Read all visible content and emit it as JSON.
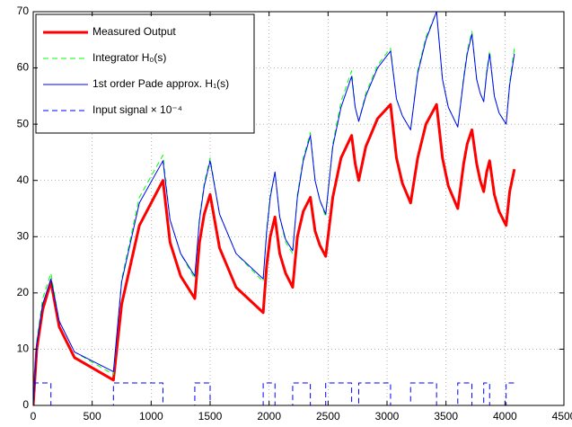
{
  "chart_data": {
    "type": "line",
    "xlim": [
      0,
      4500
    ],
    "xticks": [
      0,
      500,
      1000,
      1500,
      2000,
      2500,
      3000,
      3500,
      4000,
      4500
    ],
    "ylim": [
      0,
      70
    ],
    "yticks": [
      0,
      10,
      20,
      30,
      40,
      50,
      60,
      70
    ],
    "grid": true,
    "legend": "upper left",
    "x": [
      0,
      30,
      80,
      150,
      220,
      350,
      680,
      750,
      900,
      1100,
      1160,
      1250,
      1370,
      1410,
      1450,
      1500,
      1580,
      1720,
      1950,
      1980,
      2010,
      2050,
      2090,
      2140,
      2200,
      2240,
      2290,
      2350,
      2390,
      2430,
      2480,
      2540,
      2610,
      2700,
      2730,
      2760,
      2820,
      2920,
      3030,
      3080,
      3130,
      3200,
      3260,
      3330,
      3420,
      3470,
      3520,
      3600,
      3650,
      3680,
      3720,
      3760,
      3790,
      3820,
      3845,
      3870,
      3910,
      3950,
      4010,
      4040,
      4080
    ],
    "series": [
      {
        "name": "Measured Output",
        "color": "#ff0000",
        "style": "solid",
        "width": 3,
        "values": [
          0,
          10,
          17,
          22,
          14,
          8.5,
          4.5,
          18,
          32,
          40,
          29,
          23,
          19,
          29,
          34,
          37.5,
          28,
          21,
          16.5,
          25,
          30,
          33.5,
          27,
          23.5,
          21,
          30,
          34.5,
          37,
          31,
          28.5,
          26.5,
          37,
          44,
          48,
          43,
          40,
          46,
          51,
          53.5,
          44,
          39.5,
          36,
          44,
          50,
          53.5,
          44,
          39,
          35,
          43,
          46.5,
          49,
          43,
          40,
          38,
          41.5,
          43.5,
          37.5,
          34.5,
          32,
          38,
          42
        ]
      },
      {
        "name": "Integrator H₀(s)",
        "color": "#00ff00",
        "style": "dashed",
        "width": 1,
        "values": [
          0,
          11.5,
          19,
          23.5,
          15,
          9.5,
          5.5,
          22.5,
          37,
          44.5,
          33,
          27,
          22.5,
          33.5,
          39.5,
          44,
          34,
          27,
          22,
          31.5,
          37.5,
          41.5,
          33.5,
          29,
          27,
          37.5,
          44,
          48.5,
          40,
          36.5,
          33.5,
          46.5,
          54,
          59.5,
          53,
          50.5,
          55.5,
          60.5,
          63.5,
          54.5,
          51.5,
          49,
          59.5,
          65.5,
          70,
          58,
          53,
          49.5,
          58.5,
          63,
          66.5,
          58,
          55.5,
          54,
          59.5,
          63,
          55,
          52,
          50,
          57.5,
          63.5
        ]
      },
      {
        "name": "1st order Pade approx. H₁(s)",
        "color": "#0000ff",
        "style": "solid",
        "width": 1,
        "values": [
          0,
          11,
          18,
          22.5,
          15,
          9.5,
          6,
          22,
          36,
          43.5,
          33,
          27,
          23,
          33,
          39,
          43.5,
          34,
          27,
          22.5,
          31,
          37,
          41.5,
          33.5,
          29.5,
          27.5,
          37,
          43.5,
          48,
          40,
          36.5,
          34,
          46,
          53,
          58.5,
          53,
          50.5,
          55,
          60,
          63,
          54.5,
          51.5,
          49,
          59,
          65,
          70,
          58,
          53,
          49.5,
          58,
          62.5,
          66,
          58,
          55.5,
          54,
          59,
          62.5,
          55,
          52,
          50,
          57,
          62.5
        ]
      },
      {
        "name": "Input signal × 10⁻⁴",
        "color": "#0000ff",
        "style": "dashed",
        "width": 1,
        "x": [
          0,
          150,
          150,
          680,
          680,
          1100,
          1100,
          1370,
          1370,
          1500,
          1500,
          1950,
          1950,
          2050,
          2050,
          2200,
          2200,
          2350,
          2350,
          2480,
          2480,
          2700,
          2700,
          2760,
          2760,
          3030,
          3030,
          3200,
          3200,
          3420,
          3420,
          3600,
          3600,
          3720,
          3720,
          3820,
          3820,
          3870,
          3870,
          4010,
          4010,
          4080
        ],
        "values": [
          4,
          4,
          0,
          0,
          4,
          4,
          0,
          0,
          4,
          4,
          0,
          0,
          4,
          4,
          0,
          0,
          4,
          4,
          0,
          0,
          4,
          4,
          0,
          0,
          4,
          4,
          0,
          0,
          4,
          4,
          0,
          0,
          4,
          4,
          0,
          0,
          4,
          4,
          0,
          0,
          4,
          4
        ]
      }
    ]
  }
}
